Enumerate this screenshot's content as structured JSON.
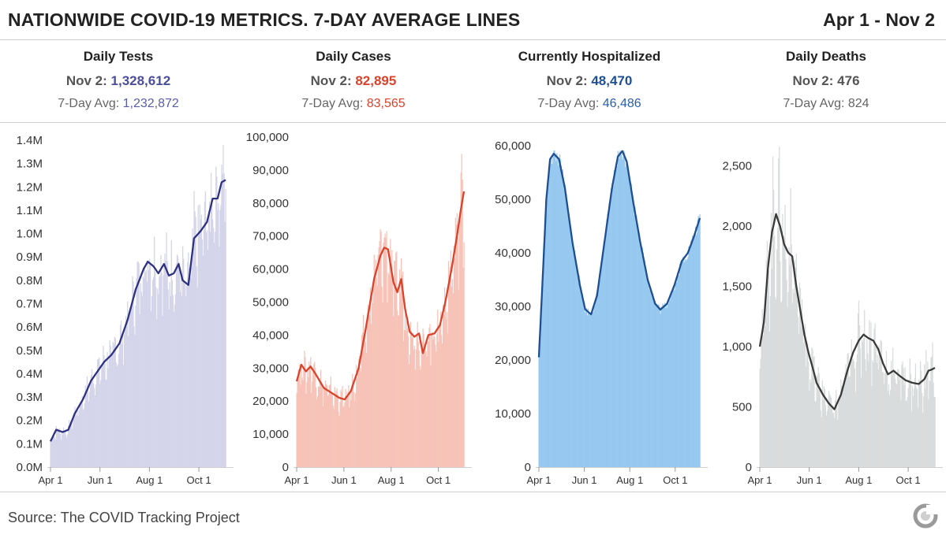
{
  "header": {
    "title": "NATIONWIDE COVID-19 METRICS. 7-DAY AVERAGE LINES",
    "date_range": "Apr 1 - Nov 2"
  },
  "metrics": [
    {
      "title": "Daily Tests",
      "day_label": "Nov 2: ",
      "day_value": "1,328,612",
      "avg_label": "7-Day Avg: ",
      "avg_value": "1,232,872",
      "value_color": "#4b4f9a",
      "avg_color": "#5a5ea8"
    },
    {
      "title": "Daily Cases",
      "day_label": "Nov 2: ",
      "day_value": "82,895",
      "avg_label": "7-Day Avg: ",
      "avg_value": "83,565",
      "value_color": "#d9432c",
      "avg_color": "#d9432c"
    },
    {
      "title": "Currently Hospitalized",
      "day_label": "Nov 2: ",
      "day_value": "48,470",
      "avg_label": "7-Day Avg: ",
      "avg_value": "46,486",
      "value_color": "#1d4f91",
      "avg_color": "#2a5ea8"
    },
    {
      "title": "Daily Deaths",
      "day_label": "Nov 2: ",
      "day_value": "476",
      "avg_label": "7-Day Avg: ",
      "avg_value": "824",
      "value_color": "#555555",
      "avg_color": "#666666"
    }
  ],
  "footer": {
    "source": "Source: The COVID Tracking Project",
    "logo_icon": "covid-tracking-project-logo-icon"
  },
  "chart_data": [
    {
      "type": "bar",
      "name": "Daily Tests",
      "bar_color": "#d4d4ea",
      "line_color": "#2d3180",
      "ylim": [
        0,
        1400000
      ],
      "yticks": [
        0,
        100000,
        200000,
        300000,
        400000,
        500000,
        600000,
        700000,
        800000,
        900000,
        1000000,
        1100000,
        1200000,
        1300000,
        1400000
      ],
      "ytick_labels": [
        "0.0M",
        "0.1M",
        "0.2M",
        "0.3M",
        "0.4M",
        "0.5M",
        "0.6M",
        "0.7M",
        "0.8M",
        "0.9M",
        "1.0M",
        "1.1M",
        "1.2M",
        "1.3M",
        "1.4M"
      ],
      "xticks": [
        {
          "day": 0,
          "label": "Apr 1"
        },
        {
          "day": 61,
          "label": "Jun 1"
        },
        {
          "day": 122,
          "label": "Aug 1"
        },
        {
          "day": 183,
          "label": "Oct 1"
        }
      ],
      "days": 216,
      "avg_points": [
        [
          0,
          110000
        ],
        [
          7,
          160000
        ],
        [
          15,
          150000
        ],
        [
          22,
          160000
        ],
        [
          30,
          230000
        ],
        [
          40,
          290000
        ],
        [
          50,
          370000
        ],
        [
          60,
          420000
        ],
        [
          66,
          450000
        ],
        [
          75,
          480000
        ],
        [
          85,
          530000
        ],
        [
          95,
          630000
        ],
        [
          105,
          760000
        ],
        [
          115,
          850000
        ],
        [
          120,
          880000
        ],
        [
          127,
          860000
        ],
        [
          133,
          830000
        ],
        [
          140,
          870000
        ],
        [
          146,
          820000
        ],
        [
          152,
          830000
        ],
        [
          158,
          870000
        ],
        [
          163,
          800000
        ],
        [
          170,
          780000
        ],
        [
          177,
          980000
        ],
        [
          185,
          1010000
        ],
        [
          193,
          1050000
        ],
        [
          200,
          1150000
        ],
        [
          206,
          1150000
        ],
        [
          211,
          1220000
        ],
        [
          216,
          1230000
        ]
      ],
      "bar_noise": 0.13
    },
    {
      "type": "bar",
      "name": "Daily Cases",
      "bar_color": "#f7c2b7",
      "line_color": "#d9432c",
      "ylim": [
        0,
        100000
      ],
      "yticks": [
        0,
        10000,
        20000,
        30000,
        40000,
        50000,
        60000,
        70000,
        80000,
        90000,
        100000
      ],
      "ytick_labels": [
        "0",
        "10,000",
        "20,000",
        "30,000",
        "40,000",
        "50,000",
        "60,000",
        "70,000",
        "80,000",
        "90,000",
        "100,000"
      ],
      "xticks": [
        {
          "day": 0,
          "label": "Apr 1"
        },
        {
          "day": 61,
          "label": "Jun 1"
        },
        {
          "day": 122,
          "label": "Aug 1"
        },
        {
          "day": 183,
          "label": "Oct 1"
        }
      ],
      "days": 216,
      "avg_points": [
        [
          0,
          26000
        ],
        [
          6,
          31000
        ],
        [
          12,
          29000
        ],
        [
          18,
          30500
        ],
        [
          25,
          28000
        ],
        [
          35,
          24000
        ],
        [
          45,
          22500
        ],
        [
          55,
          21000
        ],
        [
          62,
          20500
        ],
        [
          70,
          23000
        ],
        [
          80,
          30000
        ],
        [
          90,
          43000
        ],
        [
          100,
          57000
        ],
        [
          108,
          64000
        ],
        [
          113,
          66500
        ],
        [
          118,
          66000
        ],
        [
          125,
          56000
        ],
        [
          130,
          53000
        ],
        [
          135,
          57000
        ],
        [
          140,
          48000
        ],
        [
          146,
          41000
        ],
        [
          152,
          39500
        ],
        [
          158,
          40500
        ],
        [
          163,
          34500
        ],
        [
          170,
          40000
        ],
        [
          178,
          40500
        ],
        [
          185,
          43000
        ],
        [
          192,
          50000
        ],
        [
          200,
          60000
        ],
        [
          207,
          70000
        ],
        [
          212,
          78000
        ],
        [
          216,
          83500
        ]
      ],
      "bar_noise": 0.14
    },
    {
      "type": "bar",
      "name": "Currently Hospitalized",
      "bar_color": "#96c8f0",
      "line_color": "#1d4f91",
      "ylim": [
        0,
        60000
      ],
      "yticks": [
        0,
        10000,
        20000,
        30000,
        40000,
        50000,
        60000
      ],
      "ytick_labels": [
        "0",
        "10,000",
        "20,000",
        "30,000",
        "40,000",
        "50,000",
        "60,000"
      ],
      "xticks": [
        {
          "day": 0,
          "label": "Apr 1"
        },
        {
          "day": 61,
          "label": "Jun 1"
        },
        {
          "day": 122,
          "label": "Aug 1"
        },
        {
          "day": 183,
          "label": "Oct 1"
        }
      ],
      "days": 216,
      "avg_points": [
        [
          0,
          20500
        ],
        [
          5,
          35000
        ],
        [
          10,
          50000
        ],
        [
          15,
          57500
        ],
        [
          20,
          58500
        ],
        [
          27,
          57500
        ],
        [
          35,
          52000
        ],
        [
          45,
          42000
        ],
        [
          55,
          34000
        ],
        [
          62,
          29500
        ],
        [
          70,
          28500
        ],
        [
          78,
          32000
        ],
        [
          88,
          42000
        ],
        [
          98,
          52000
        ],
        [
          106,
          58000
        ],
        [
          112,
          59000
        ],
        [
          118,
          57000
        ],
        [
          126,
          50000
        ],
        [
          136,
          42000
        ],
        [
          146,
          35000
        ],
        [
          156,
          30500
        ],
        [
          163,
          29400
        ],
        [
          172,
          30500
        ],
        [
          182,
          34000
        ],
        [
          192,
          38500
        ],
        [
          200,
          40000
        ],
        [
          208,
          43000
        ],
        [
          216,
          46500
        ]
      ],
      "bar_noise": 0.03
    },
    {
      "type": "bar",
      "name": "Daily Deaths",
      "bar_color": "#d9dcdc",
      "line_color": "#3a3a3a",
      "ylim": [
        0,
        2700
      ],
      "yticks": [
        0,
        500,
        1000,
        1500,
        2000,
        2500
      ],
      "ytick_labels": [
        "0",
        "500",
        "1,000",
        "1,500",
        "2,000",
        "2,500"
      ],
      "xticks": [
        {
          "day": 0,
          "label": "Apr 1"
        },
        {
          "day": 61,
          "label": "Jun 1"
        },
        {
          "day": 122,
          "label": "Aug 1"
        },
        {
          "day": 183,
          "label": "Oct 1"
        }
      ],
      "days": 216,
      "avg_points": [
        [
          0,
          1000
        ],
        [
          5,
          1200
        ],
        [
          10,
          1650
        ],
        [
          15,
          1950
        ],
        [
          20,
          2100
        ],
        [
          25,
          2000
        ],
        [
          30,
          1850
        ],
        [
          35,
          1780
        ],
        [
          40,
          1750
        ],
        [
          45,
          1500
        ],
        [
          50,
          1300
        ],
        [
          55,
          1100
        ],
        [
          60,
          950
        ],
        [
          65,
          830
        ],
        [
          70,
          700
        ],
        [
          78,
          600
        ],
        [
          85,
          530
        ],
        [
          92,
          480
        ],
        [
          100,
          600
        ],
        [
          108,
          800
        ],
        [
          115,
          950
        ],
        [
          122,
          1050
        ],
        [
          128,
          1100
        ],
        [
          134,
          1070
        ],
        [
          140,
          1050
        ],
        [
          146,
          980
        ],
        [
          152,
          860
        ],
        [
          158,
          770
        ],
        [
          165,
          800
        ],
        [
          172,
          760
        ],
        [
          180,
          720
        ],
        [
          188,
          700
        ],
        [
          196,
          690
        ],
        [
          203,
          730
        ],
        [
          208,
          800
        ],
        [
          212,
          810
        ],
        [
          216,
          824
        ]
      ],
      "bar_noise": 0.2
    }
  ]
}
